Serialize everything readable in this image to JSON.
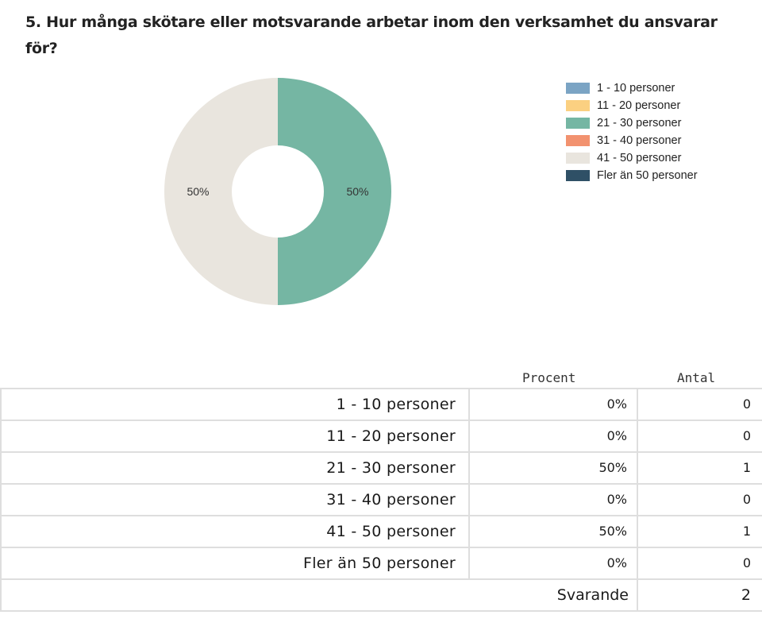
{
  "question": {
    "title": "5. Hur många skötare eller motsvarande arbetar inom den verksamhet du ansvarar för?"
  },
  "chart_data": {
    "type": "pie",
    "donut": true,
    "categories": [
      "1 - 10 personer",
      "11 - 20 personer",
      "21 - 30 personer",
      "31 - 40 personer",
      "41 - 50 personer",
      "Fler än 50 personer"
    ],
    "values": [
      0,
      0,
      50,
      0,
      50,
      0
    ],
    "colors": [
      "#7ba4c4",
      "#fbd081",
      "#75b6a3",
      "#f2926f",
      "#e9e5de",
      "#2f5066"
    ],
    "data_labels": [
      "",
      "",
      "50%",
      "",
      "50%",
      ""
    ],
    "legend_position": "top-right"
  },
  "table": {
    "headers": {
      "percent": "Procent",
      "count": "Antal"
    },
    "rows": [
      {
        "label": "1 - 10 personer",
        "percent": "0%",
        "count": "0"
      },
      {
        "label": "11 - 20 personer",
        "percent": "0%",
        "count": "0"
      },
      {
        "label": "21 - 30 personer",
        "percent": "50%",
        "count": "1"
      },
      {
        "label": "31 - 40 personer",
        "percent": "0%",
        "count": "0"
      },
      {
        "label": "41 - 50 personer",
        "percent": "50%",
        "count": "1"
      },
      {
        "label": "Fler än 50 personer",
        "percent": "0%",
        "count": "0"
      }
    ],
    "total_label": "Svarande",
    "total_value": "2"
  }
}
